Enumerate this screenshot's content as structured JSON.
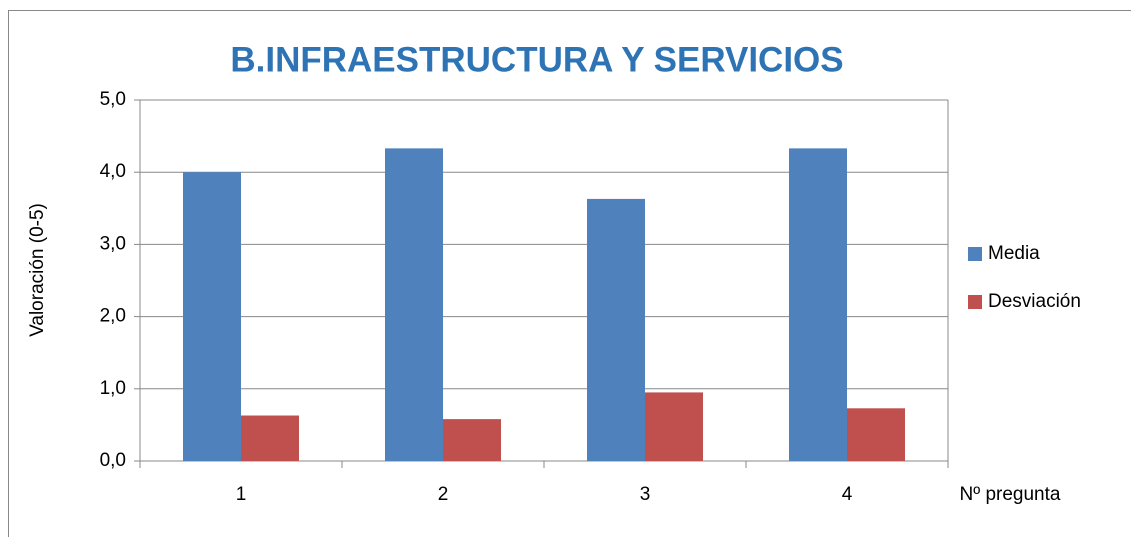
{
  "chart_data": {
    "type": "bar",
    "title": "B.INFRAESTRUCTURA Y SERVICIOS",
    "y_label": "Valoración (0-5)",
    "x_label": "Nº pregunta",
    "categories": [
      "1",
      "2",
      "3",
      "4"
    ],
    "series": [
      {
        "name": "Media",
        "color": "#4f81bd",
        "values": [
          4.0,
          4.33,
          3.63,
          4.33
        ]
      },
      {
        "name": "Desviación",
        "color": "#c0504d",
        "values": [
          0.63,
          0.58,
          0.95,
          0.73
        ]
      }
    ],
    "ylim": [
      0,
      5
    ],
    "yticks": [
      {
        "value": 0,
        "label": "0,0"
      },
      {
        "value": 1,
        "label": "1,0"
      },
      {
        "value": 2,
        "label": "2,0"
      },
      {
        "value": 3,
        "label": "3,0"
      },
      {
        "value": 4,
        "label": "4,0"
      },
      {
        "value": 5,
        "label": "5,0"
      }
    ],
    "grid": true,
    "legend": "right"
  }
}
